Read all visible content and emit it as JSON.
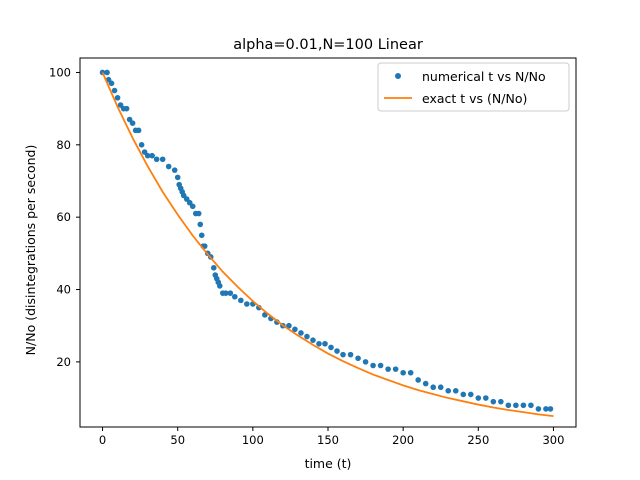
{
  "chart_data": {
    "type": "scatter",
    "title": "alpha=0.01,N=100 Linear",
    "xlabel": "time (t)",
    "ylabel": "N/No (disintegrations per second)",
    "xlim": [
      -15,
      315
    ],
    "ylim": [
      2,
      104
    ],
    "xticks": [
      0,
      50,
      100,
      150,
      200,
      250,
      300
    ],
    "yticks": [
      20,
      40,
      60,
      80,
      100
    ],
    "grid": false,
    "legend_position": "top-right",
    "series": [
      {
        "name": "numerical t vs N/No",
        "kind": "points",
        "color": "#1f77b4",
        "x": [
          0,
          3,
          4,
          6,
          8,
          10,
          12,
          14,
          16,
          18,
          20,
          22,
          24,
          26,
          28,
          30,
          33,
          36,
          40,
          44,
          48,
          50,
          51,
          52,
          53,
          54,
          56,
          58,
          60,
          62,
          64,
          65,
          66,
          67,
          68,
          70,
          72,
          74,
          75,
          76,
          77,
          78,
          80,
          82,
          85,
          88,
          92,
          96,
          100,
          104,
          108,
          112,
          116,
          120,
          124,
          128,
          132,
          136,
          140,
          144,
          148,
          152,
          156,
          160,
          165,
          170,
          175,
          180,
          185,
          190,
          195,
          200,
          205,
          210,
          215,
          220,
          225,
          230,
          235,
          240,
          245,
          250,
          255,
          260,
          265,
          270,
          275,
          280,
          285,
          290,
          295,
          298
        ],
        "y": [
          100,
          100,
          98,
          97,
          95,
          93,
          91,
          90,
          90,
          87,
          86,
          84,
          84,
          80,
          78,
          77,
          77,
          76,
          76,
          74,
          73,
          71,
          69,
          68,
          67,
          66,
          65,
          64,
          63,
          61,
          61,
          58,
          55,
          52,
          52,
          50,
          49,
          46,
          44,
          43,
          42,
          41,
          39,
          39,
          39,
          38,
          37,
          36,
          36,
          35,
          33,
          32,
          31,
          30,
          30,
          29,
          28,
          27,
          26,
          25,
          25,
          24,
          23,
          22,
          22,
          21,
          20,
          19,
          19,
          18,
          18,
          17,
          17,
          15,
          14,
          13,
          13,
          12,
          12,
          11,
          11,
          10,
          10,
          9,
          9,
          8,
          8,
          8,
          8,
          7,
          7,
          7
        ]
      },
      {
        "name": "exact t vs (N/No)",
        "kind": "line",
        "color": "#ff7f0e",
        "x": [
          0,
          10,
          20,
          30,
          40,
          50,
          60,
          70,
          80,
          90,
          100,
          110,
          120,
          130,
          140,
          150,
          160,
          170,
          180,
          190,
          200,
          210,
          220,
          230,
          240,
          250,
          260,
          270,
          280,
          290,
          300
        ],
        "y": [
          100,
          90.5,
          81.9,
          74.1,
          67.0,
          60.7,
          54.9,
          49.7,
          44.9,
          40.7,
          36.8,
          33.3,
          30.1,
          27.3,
          24.7,
          22.3,
          20.2,
          18.3,
          16.5,
          15.0,
          13.5,
          12.2,
          11.1,
          10.0,
          9.1,
          8.2,
          7.4,
          6.7,
          6.1,
          5.5,
          5.0
        ]
      }
    ]
  }
}
